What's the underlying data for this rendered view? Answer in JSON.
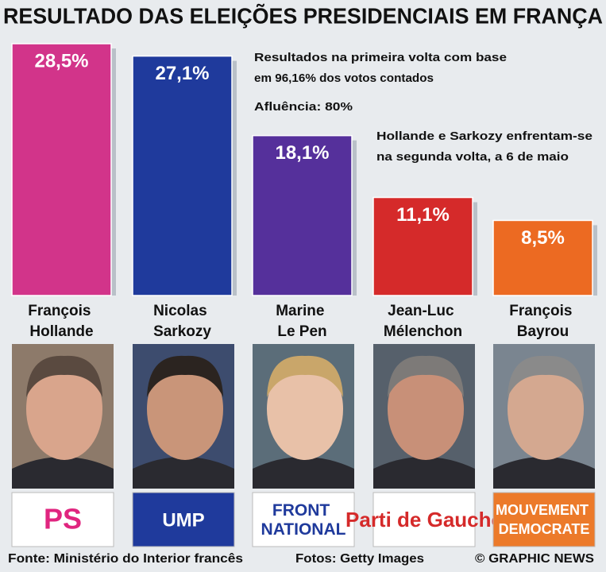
{
  "chart_data": {
    "type": "bar",
    "title": "RESULTADO DAS ELEIÇÕES PRESIDENCIAIS EM FRANÇA",
    "categories": [
      "François Hollande",
      "Nicolas Sarkozy",
      "Marine Le Pen",
      "Jean-Luc Mélenchon",
      "François Bayrou"
    ],
    "values": [
      28.5,
      27.1,
      18.1,
      11.1,
      8.5
    ],
    "value_labels": [
      "28,5%",
      "27,1%",
      "18,1%",
      "11,1%",
      "8,5%"
    ],
    "colors": [
      "#d2348a",
      "#1f3a9c",
      "#55309b",
      "#d52a2a",
      "#ec6a22"
    ],
    "annotations": [
      "Resultados na primeira volta com base",
      "em 96,16% dos votos contados",
      "Afluência: 80%",
      "Hollande e Sarkozy enfrentam-se",
      "na segunda volta, a 6 de maio"
    ],
    "logos": [
      "PS",
      "UMP",
      "FRONT NATIONAL",
      "Parti de Gauche",
      "MOUVEMENT DEMOCRATE"
    ],
    "source": "Fonte: Ministério do Interior francês",
    "photo_credit": "Fotos: Getty Images",
    "credit": "© GRAPHIC NEWS"
  }
}
